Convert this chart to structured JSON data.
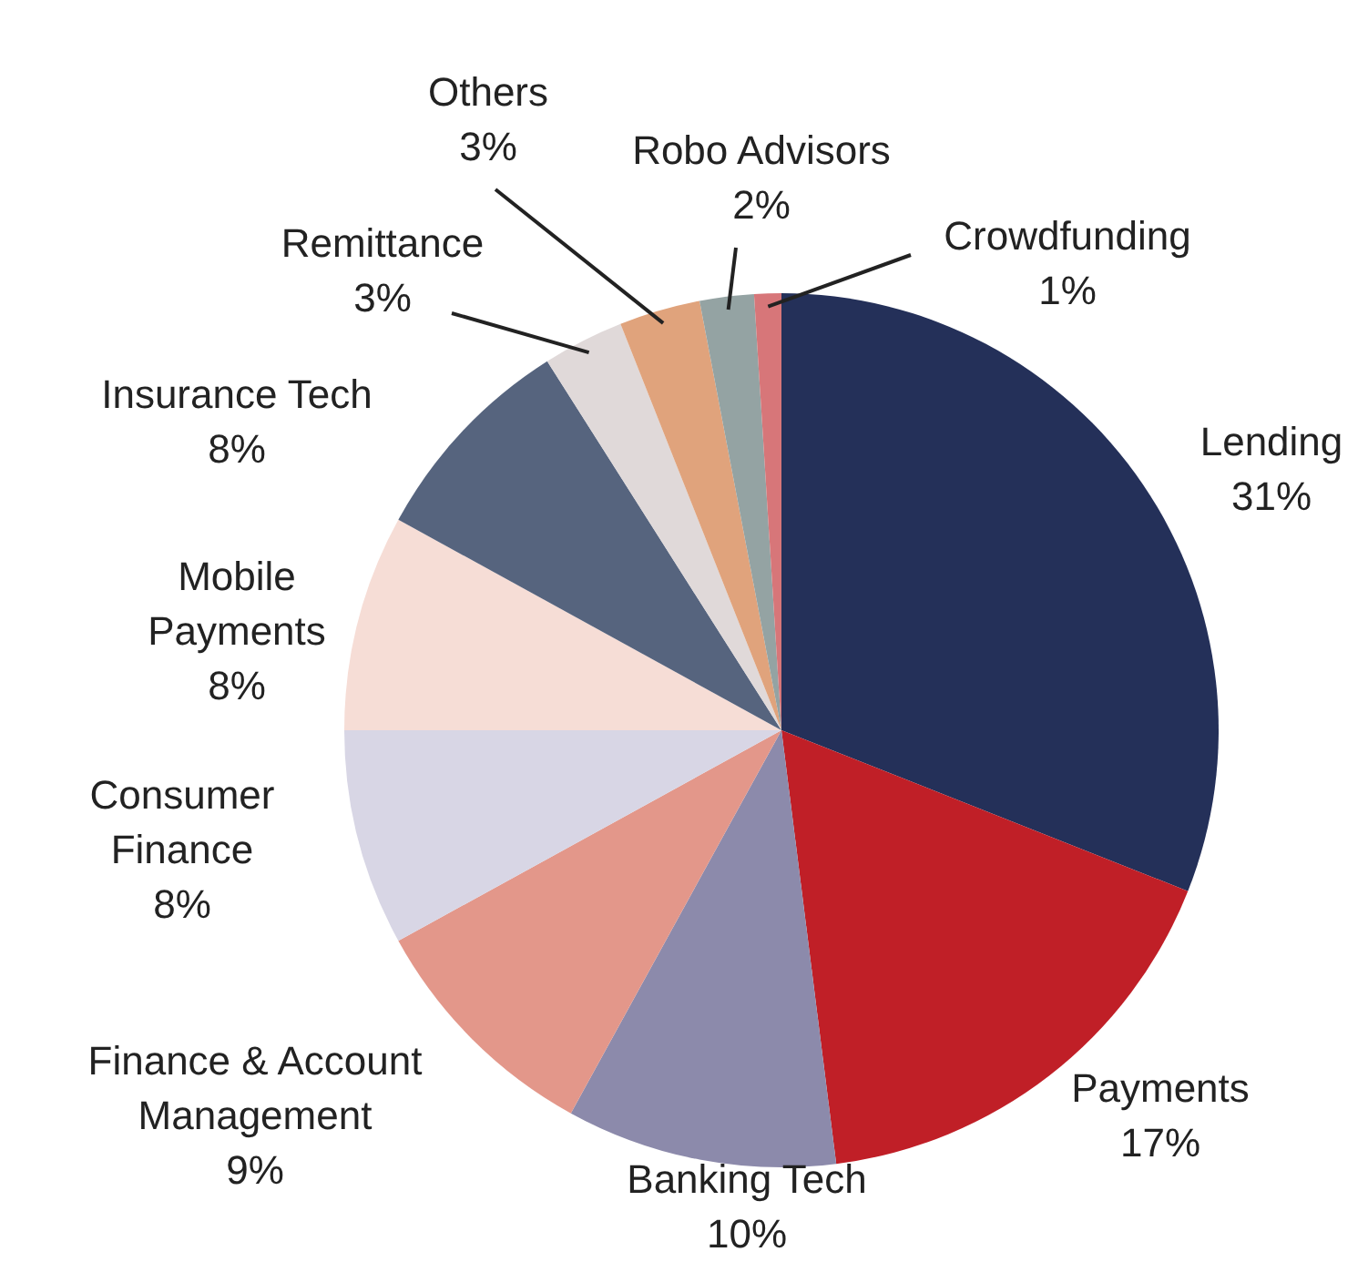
{
  "chart_data": {
    "type": "pie",
    "categories": [
      "Lending",
      "Payments",
      "Banking Tech",
      "Finance & Account Management",
      "Consumer Finance",
      "Mobile Payments",
      "Insurance Tech",
      "Remittance",
      "Others",
      "Robo Advisors",
      "Crowdfunding"
    ],
    "values": [
      31,
      17,
      10,
      9,
      8,
      8,
      8,
      3,
      3,
      2,
      1
    ],
    "value_labels": [
      "31%",
      "17%",
      "10%",
      "9%",
      "8%",
      "8%",
      "8%",
      "3%",
      "3%",
      "2%",
      "1%"
    ],
    "colors": [
      "#243059",
      "#c01f27",
      "#8c8aab",
      "#e3978a",
      "#d8d6e5",
      "#f6ddd6",
      "#56647e",
      "#e0d9d9",
      "#e0a37c",
      "#94a3a3",
      "#d77679"
    ]
  }
}
